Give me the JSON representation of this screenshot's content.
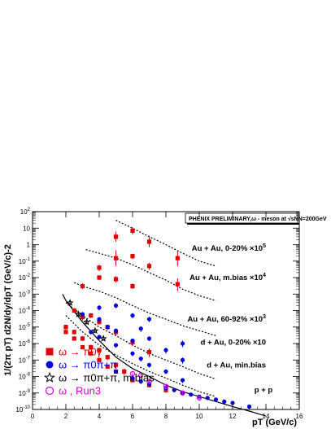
{
  "chart_data": {
    "type": "scatter",
    "title": "",
    "banner": "PHENIX PRELIMINARY,ω - meson at √sNN=200GeV",
    "xlabel": "pT (GeV/c)",
    "ylabel": "1/(2π pT) d2N/dy/dpT (GeV/c)-2",
    "xlim": [
      0,
      16
    ],
    "ylim": [
      1e-10,
      100
    ],
    "yscale": "log",
    "grid": false,
    "xticks": [
      "0",
      "2",
      "4",
      "6",
      "8",
      "10",
      "12",
      "14",
      "16"
    ],
    "yticks": [
      "10-10",
      "10-9",
      "10-8",
      "10-7",
      "10-6",
      "10-5",
      "10-4",
      "10-3",
      "10-2",
      "10-1",
      "1",
      "10",
      "102"
    ],
    "legend_position": "bottom-left",
    "legend": [
      {
        "label": "ω → π0γ",
        "marker": "square",
        "color": "#e00000"
      },
      {
        "label": "ω → π0π+π",
        "marker": "circle",
        "color": "#0000e0"
      },
      {
        "label": "ω → π0π+π, m.bias",
        "marker": "star",
        "color": "#000000"
      },
      {
        "label": "ω , Run3",
        "marker": "open-circle",
        "color": "#e000e0"
      }
    ],
    "curve_labels": [
      {
        "text": "Au + Au, 0-20% ×105",
        "x": 14.0,
        "y": 0.6
      },
      {
        "text": "Au + Au, m.bias ×104",
        "x": 14.0,
        "y": 0.01
      },
      {
        "text": "Au + Au, 60-92% ×103",
        "x": 14.0,
        "y": 3e-05
      },
      {
        "text": "d + Au, 0-20% ×10",
        "x": 14.0,
        "y": 1.2e-06
      },
      {
        "text": "d + Au, min.bias",
        "x": 14.0,
        "y": 5e-08
      },
      {
        "text": "p + p",
        "x": 14.4,
        "y": 1.5e-09
      }
    ],
    "series": [
      {
        "name": "ω → π0γ",
        "marker": "square",
        "color": "#e00000",
        "x": [
          5.0,
          6.0,
          7.0,
          8.7
        ],
        "y": [
          3.0,
          7.0,
          1.5,
          0.15
        ],
        "yerr_low": [
          1.5,
          3.0,
          0.8,
          0.1
        ],
        "yerr_high": [
          3.0,
          4.0,
          2.0,
          0.3
        ]
      },
      {
        "name": "ω → π0γ",
        "marker": "square",
        "color": "#e00000",
        "x": [
          4.0,
          5.0,
          6.0,
          7.0,
          8.7
        ],
        "y": [
          0.04,
          0.15,
          0.2,
          0.05,
          0.004
        ],
        "yerr_low": [
          0.015,
          0.1,
          0.07,
          0.02,
          0.0025
        ],
        "yerr_high": [
          0.02,
          0.3,
          0.08,
          0.03,
          0.005
        ]
      },
      {
        "name": "ω → π0γ",
        "marker": "square",
        "color": "#e00000",
        "x": [
          3.0,
          4.0,
          5.0,
          6.0
        ],
        "y": [
          0.003,
          0.01,
          0.008,
          0.003
        ],
        "yerr_low": [
          0.001,
          0.003,
          0.003,
          0.001
        ],
        "yerr_high": [
          0.0015,
          0.004,
          0.004,
          0.0015
        ]
      },
      {
        "name": "ω → π0γ",
        "marker": "square",
        "color": "#e00000",
        "x": [
          2.5,
          3.0,
          3.5,
          4.0,
          4.5,
          5.0,
          6.0,
          7.0
        ],
        "y": [
          0.0001,
          4e-05,
          5e-05,
          2e-05,
          1e-05,
          5e-06,
          1.2e-06,
          3e-07
        ],
        "yerr_low": [
          3e-05,
          1.5e-05,
          1.5e-05,
          6e-06,
          3e-06,
          2e-06,
          5e-07,
          1.5e-07
        ],
        "yerr_high": [
          4e-05,
          2e-05,
          2e-05,
          8e-06,
          4e-06,
          2e-06,
          6e-07,
          2e-07
        ]
      },
      {
        "name": "ω → π0γ",
        "marker": "square",
        "color": "#e00000",
        "x": [
          2.0,
          2.5,
          3.0,
          3.5,
          4.0,
          4.5,
          5.0,
          5.5
        ],
        "y": [
          1e-05,
          5e-06,
          2e-06,
          6e-07,
          4e-07,
          1.5e-07,
          5e-08,
          2e-08
        ],
        "yerr_low": [
          3e-06,
          1.5e-06,
          6e-07,
          2e-07,
          1.2e-07,
          5e-08,
          2e-08,
          8e-09
        ],
        "yerr_high": [
          4e-06,
          2e-06,
          8e-07,
          2.5e-07,
          1.5e-07,
          6e-08,
          2e-08,
          1e-08
        ]
      },
      {
        "name": "ω → π0γ",
        "marker": "square",
        "color": "#e00000",
        "x": [
          2.0,
          2.5,
          3.0,
          3.5,
          4.0,
          4.5,
          5.0,
          6.0,
          7.0,
          8.0
        ],
        "y": [
          5e-06,
          2e-06,
          6e-07,
          2.5e-07,
          1e-07,
          4e-08,
          2e-08,
          6e-09,
          3e-09,
          1.5e-09
        ],
        "yerr_low": [
          1e-06,
          5e-07,
          1.5e-07,
          6e-08,
          2.5e-08,
          1e-08,
          5e-09,
          1.5e-09,
          8e-10,
          5e-10
        ],
        "yerr_high": [
          1e-06,
          5e-07,
          1.5e-07,
          6e-08,
          2.5e-08,
          1e-08,
          5e-09,
          1.5e-09,
          8e-10,
          5e-10
        ]
      },
      {
        "name": "ω → π0π+π",
        "marker": "circle",
        "color": "#0000e0",
        "x": [
          4.0,
          5.0,
          6.0,
          7.0,
          9.0
        ],
        "y": [
          0.00015,
          0.0002,
          5e-05,
          3e-05,
          1e-06
        ],
        "yerr_low": [
          5e-05,
          6e-05,
          1.5e-05,
          1e-05,
          4e-07
        ],
        "yerr_high": [
          6e-05,
          8e-05,
          2e-05,
          1.2e-05,
          5e-07
        ]
      },
      {
        "name": "ω → π0π+π",
        "marker": "circle",
        "color": "#0000e0",
        "x": [
          3.0,
          4.0,
          4.5,
          5.0,
          6.0,
          6.5,
          7.0,
          8.0,
          9.0
        ],
        "y": [
          6e-05,
          3e-05,
          1e-05,
          6e-06,
          1.5e-06,
          8e-06,
          2e-06,
          4e-07,
          1e-07
        ],
        "yerr_low": [
          2e-05,
          1e-05,
          3e-06,
          2e-06,
          5e-07,
          3e-06,
          6e-07,
          1.5e-07,
          4e-08
        ],
        "yerr_high": [
          2e-05,
          1e-05,
          3e-06,
          2e-06,
          5e-07,
          3e-06,
          6e-07,
          1.5e-07,
          4e-08
        ]
      },
      {
        "name": "ω → π0π+π",
        "marker": "circle",
        "color": "#0000e0",
        "x": [
          3.5,
          4.0,
          5.0,
          6.0,
          6.5,
          7.0,
          8.0,
          9.0
        ],
        "y": [
          5e-06,
          2.5e-06,
          8e-07,
          2.5e-07,
          1.2e-07,
          5e-08,
          2e-08,
          6e-09
        ],
        "yerr_low": [
          1.5e-06,
          7e-07,
          2.5e-07,
          8e-08,
          4e-08,
          1.5e-08,
          6e-09,
          2e-09
        ],
        "yerr_high": [
          1.5e-06,
          7e-07,
          2.5e-07,
          8e-08,
          4e-08,
          1.5e-08,
          6e-09,
          2e-09
        ]
      },
      {
        "name": "ω → π0π+π",
        "marker": "circle",
        "color": "#0000e0",
        "x": [
          5.0,
          6.0,
          6.5,
          7.0,
          8.0,
          8.5,
          9.0,
          9.5,
          10.0,
          10.5,
          11.0,
          11.5,
          12.0,
          13.0
        ],
        "y": [
          2e-08,
          8e-09,
          5e-09,
          3.5e-09,
          2e-09,
          1.5e-09,
          1e-09,
          8e-10,
          6e-10,
          5e-10,
          4e-10,
          3e-10,
          2.5e-10,
          1.5e-10
        ],
        "yerr_low": [
          5e-09,
          2e-09,
          1.5e-09,
          1e-09,
          5e-10,
          4e-10,
          3e-10,
          2e-10,
          1.5e-10,
          1.2e-10,
          1e-10,
          8e-11,
          6e-11,
          4e-11
        ],
        "yerr_high": [
          5e-09,
          2e-09,
          1.5e-09,
          1e-09,
          5e-10,
          4e-10,
          3e-10,
          2e-10,
          1.5e-10,
          1.2e-10,
          1e-10,
          8e-11,
          6e-11,
          4e-11
        ]
      },
      {
        "name": "ω → π0π+π, m.bias",
        "marker": "star",
        "color": "#000000",
        "x": [
          2.25,
          2.75,
          3.25,
          3.75,
          4.25
        ],
        "y": [
          0.0003,
          6e-05,
          2e-05,
          6e-06,
          2e-06
        ],
        "yerr_low": [
          8e-05,
          1.5e-05,
          5e-06,
          1.5e-06,
          5e-07
        ],
        "yerr_high": [
          8e-05,
          1.5e-05,
          5e-06,
          1.5e-06,
          5e-07
        ]
      },
      {
        "name": "ω , Run3",
        "marker": "open-circle",
        "color": "#e000e0",
        "x": [
          6.0,
          6.5,
          7.0,
          8.0,
          9.0,
          10.0
        ],
        "y": [
          1.5e-08,
          1.2e-08,
          5e-09,
          2.5e-09,
          1e-09,
          5e-10
        ],
        "yerr_low": [
          4e-09,
          3e-09,
          1.5e-09,
          7e-10,
          3e-10,
          1.5e-10
        ],
        "yerr_high": [
          4e-09,
          3e-09,
          1.5e-09,
          7e-10,
          3e-10,
          1.5e-10
        ]
      }
    ],
    "fit_curves": [
      {
        "style": "dashed",
        "x": [
          5.0,
          6.0,
          7.0,
          8.0,
          9.0,
          10.0,
          11.0
        ],
        "y": [
          30.0,
          10.0,
          3.0,
          1.0,
          0.3,
          0.1,
          0.05
        ]
      },
      {
        "style": "dashed",
        "x": [
          3.2,
          4.0,
          5.0,
          6.0,
          7.0,
          8.0,
          9.0,
          10.0,
          11.0
        ],
        "y": [
          0.5,
          0.3,
          0.15,
          0.06,
          0.02,
          0.007,
          0.002,
          0.0008,
          0.0004
        ]
      },
      {
        "style": "dashed",
        "x": [
          2.5,
          3.0,
          4.0,
          5.0,
          6.0,
          7.0,
          8.0,
          9.0,
          10.0,
          11.0
        ],
        "y": [
          0.005,
          0.003,
          0.0015,
          0.0006,
          0.0002,
          7e-05,
          3e-05,
          1.2e-05,
          6e-06,
          3e-06
        ]
      },
      {
        "style": "dashed",
        "x": [
          2.0,
          3.0,
          4.0,
          5.0,
          6.0,
          7.0,
          8.0,
          9.0,
          10.0,
          11.0
        ],
        "y": [
          0.0003,
          5e-05,
          1e-05,
          3e-06,
          8e-07,
          2.5e-07,
          1e-07,
          4e-08,
          1.5e-08,
          7e-09
        ]
      },
      {
        "style": "dashed",
        "x": [
          2.0,
          3.0,
          4.0,
          5.0,
          6.0,
          7.0,
          8.0,
          9.0,
          10.0,
          11.0
        ],
        "y": [
          5e-05,
          5e-06,
          8e-07,
          2e-07,
          6e-08,
          2e-08,
          8e-09,
          3e-09,
          1.2e-09,
          6e-10
        ]
      },
      {
        "style": "solid",
        "x": [
          1.8,
          2.0,
          3.0,
          4.0,
          5.0,
          6.0,
          7.0,
          8.0,
          9.0,
          10.0,
          11.0,
          12.0,
          13.0,
          14.0
        ],
        "y": [
          0.001,
          0.0004,
          2e-05,
          1.5e-06,
          1.5e-07,
          3e-08,
          1e-08,
          3e-09,
          1.2e-09,
          6e-10,
          3e-10,
          1.5e-10,
          8e-11,
          4e-11
        ]
      }
    ]
  }
}
